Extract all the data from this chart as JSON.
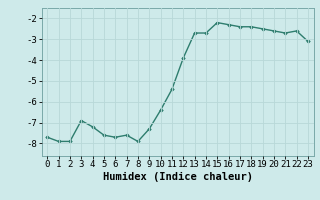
{
  "x": [
    0,
    1,
    2,
    3,
    4,
    5,
    6,
    7,
    8,
    9,
    10,
    11,
    12,
    13,
    14,
    15,
    16,
    17,
    18,
    19,
    20,
    21,
    22,
    23
  ],
  "y": [
    -7.7,
    -7.9,
    -7.9,
    -6.9,
    -7.2,
    -7.6,
    -7.7,
    -7.6,
    -7.9,
    -7.3,
    -6.4,
    -5.4,
    -3.9,
    -2.7,
    -2.7,
    -2.2,
    -2.3,
    -2.4,
    -2.4,
    -2.5,
    -2.6,
    -2.7,
    -2.6,
    -3.1
  ],
  "line_color": "#2e7d6e",
  "marker": "D",
  "marker_size": 1.8,
  "bg_color": "#ceeaea",
  "grid_color": "#b8d8d8",
  "xlabel": "Humidex (Indice chaleur)",
  "xlim": [
    -0.5,
    23.5
  ],
  "ylim": [
    -8.6,
    -1.5
  ],
  "yticks": [
    -8,
    -7,
    -6,
    -5,
    -4,
    -3,
    -2
  ],
  "xlabel_fontsize": 7.5,
  "tick_fontsize": 6.5,
  "line_width": 1.0
}
